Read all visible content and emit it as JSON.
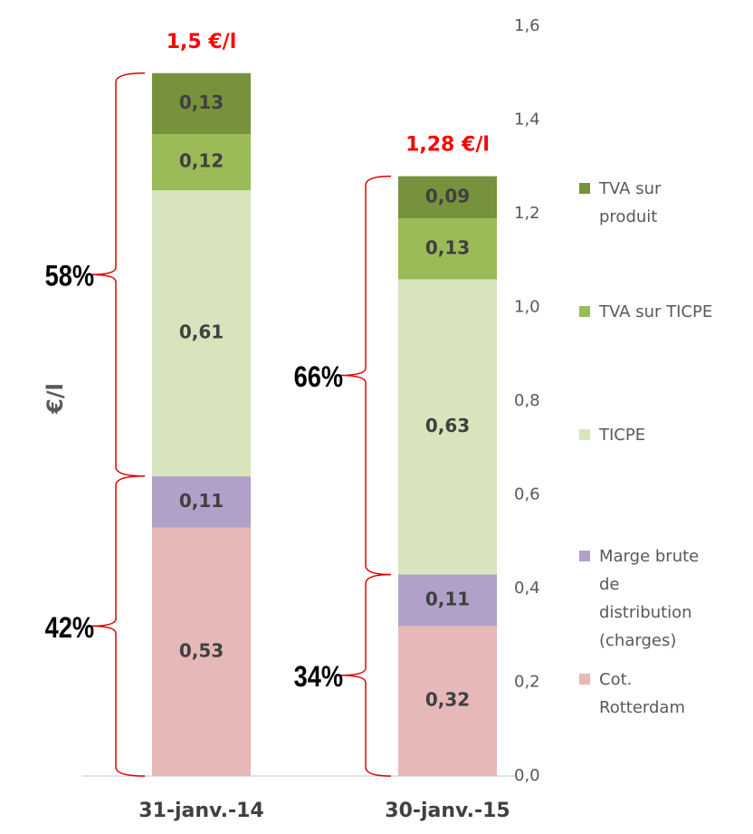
{
  "chart_data": {
    "type": "stacked_bar",
    "y_label": "€/l",
    "categories": [
      "31-janv.-14",
      "30-janv.-15"
    ],
    "series": [
      {
        "name": "Cot. Rotterdam",
        "color": "#e6b8b7",
        "values": [
          0.53,
          0.32
        ],
        "value_labels": [
          "0,53",
          "0,32"
        ]
      },
      {
        "name": "Marge brute de distribution (charges)",
        "color": "#b1a0c7",
        "values": [
          0.11,
          0.11
        ],
        "value_labels": [
          "0,11",
          "0,11"
        ]
      },
      {
        "name": "TICPE",
        "color": "#d8e4bc",
        "values": [
          0.61,
          0.63
        ],
        "value_labels": [
          "0,61",
          "0,63"
        ]
      },
      {
        "name": "TVA sur TICPE",
        "color": "#9bbb59",
        "values": [
          0.12,
          0.13
        ],
        "value_labels": [
          "0,12",
          "0,13"
        ]
      },
      {
        "name": "TVA sur produit",
        "color": "#76923c",
        "values": [
          0.13,
          0.09
        ],
        "value_labels": [
          "0,13",
          "0,09"
        ]
      }
    ],
    "total_labels": [
      "1,5 €/l",
      "1,28 €/l"
    ],
    "group_labels": [
      [
        "42%",
        "58%"
      ],
      [
        "34%",
        "66%"
      ]
    ],
    "ylim": [
      0,
      1.6
    ],
    "yticks": [
      {
        "value": 0,
        "label": "0,0"
      },
      {
        "value": 0.2,
        "label": "0,2"
      },
      {
        "value": 0.4,
        "label": "0,4"
      },
      {
        "value": 0.6,
        "label": "0,6"
      },
      {
        "value": 0.8,
        "label": "0,8"
      },
      {
        "value": 1.0,
        "label": "1,0"
      },
      {
        "value": 1.2,
        "label": "1,2"
      },
      {
        "value": 1.4,
        "label": "1,4"
      },
      {
        "value": 1.6,
        "label": "1,6"
      }
    ],
    "grid": false
  }
}
